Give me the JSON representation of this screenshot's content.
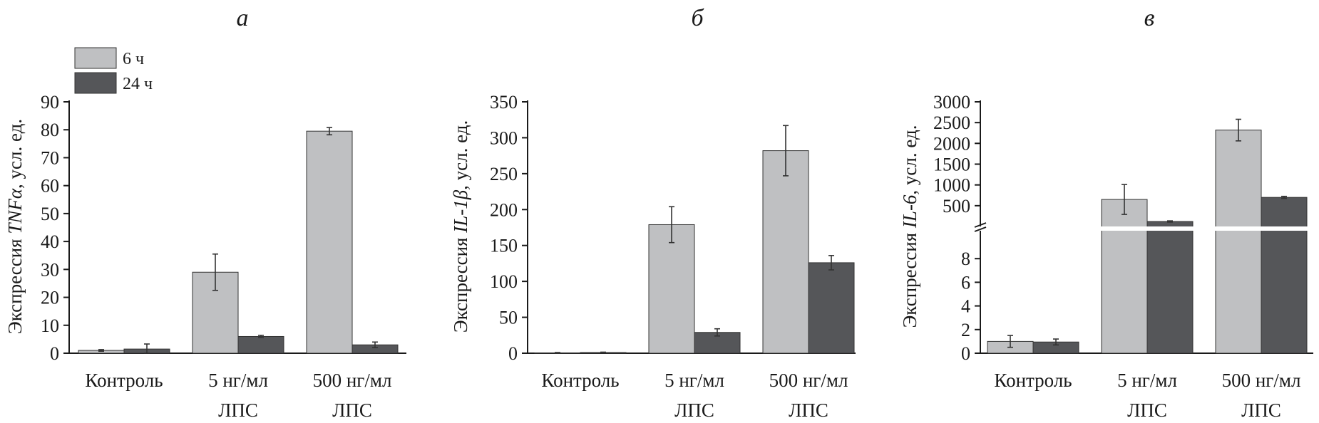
{
  "legend": [
    {
      "label": "6 ч",
      "color": "#bfc0c2"
    },
    {
      "label": "24 ч",
      "color": "#555659"
    }
  ],
  "chart_data": [
    {
      "type": "bar",
      "panel": "а",
      "ylabel_prefix": "Экспрессия ",
      "ylabel_gene": "TNFα",
      "ylabel_suffix": ", усл. ед.",
      "categories": [
        [
          "Контроль"
        ],
        [
          "5 нг/мл",
          "ЛПС"
        ],
        [
          "500 нг/мл",
          "ЛПС"
        ]
      ],
      "ylim": [
        0,
        90
      ],
      "yticks": [
        0,
        10,
        20,
        30,
        40,
        50,
        60,
        70,
        80,
        90
      ],
      "series": [
        {
          "name": "6 ч",
          "values": [
            1.0,
            29.0,
            79.5
          ],
          "errors": [
            0.3,
            6.5,
            1.3
          ]
        },
        {
          "name": "24 ч",
          "values": [
            1.5,
            6.0,
            3.0
          ],
          "errors": [
            1.8,
            0.4,
            1.0
          ]
        }
      ]
    },
    {
      "type": "bar",
      "panel": "б",
      "ylabel_prefix": "Экспрессия ",
      "ylabel_gene": "IL-1β",
      "ylabel_suffix": ", усл. ед.",
      "categories": [
        [
          "Контроль"
        ],
        [
          "5 нг/мл",
          "ЛПС"
        ],
        [
          "500 нг/мл",
          "ЛПС"
        ]
      ],
      "ylim": [
        0,
        350
      ],
      "yticks": [
        0,
        50,
        100,
        150,
        200,
        250,
        300,
        350
      ],
      "series": [
        {
          "name": "6 ч",
          "values": [
            0.5,
            179,
            282
          ],
          "errors": [
            0.5,
            25,
            35
          ]
        },
        {
          "name": "24 ч",
          "values": [
            1,
            29,
            126
          ],
          "errors": [
            0.5,
            5,
            10
          ]
        }
      ]
    },
    {
      "type": "bar",
      "panel": "в",
      "ylabel_prefix": "Экспрессия ",
      "ylabel_gene": "IL-6",
      "ylabel_suffix": ", усл. ед.",
      "categories": [
        [
          "Контроль"
        ],
        [
          "5 нг/мл",
          "ЛПС"
        ],
        [
          "500 нг/мл",
          "ЛПС"
        ]
      ],
      "broken_axis": true,
      "lower_ylim": [
        0,
        10
      ],
      "lower_yticks": [
        0,
        2,
        4,
        6,
        8
      ],
      "upper_ylim": [
        0,
        3000
      ],
      "upper_yticks": [
        500,
        1000,
        1500,
        2000,
        2500,
        3000
      ],
      "series": [
        {
          "name": "6 ч",
          "values": [
            1.0,
            650,
            2320
          ],
          "errors": [
            0.5,
            360,
            260
          ]
        },
        {
          "name": "24 ч",
          "values": [
            0.95,
            120,
            700
          ],
          "errors": [
            0.25,
            15,
            25
          ]
        }
      ]
    }
  ]
}
